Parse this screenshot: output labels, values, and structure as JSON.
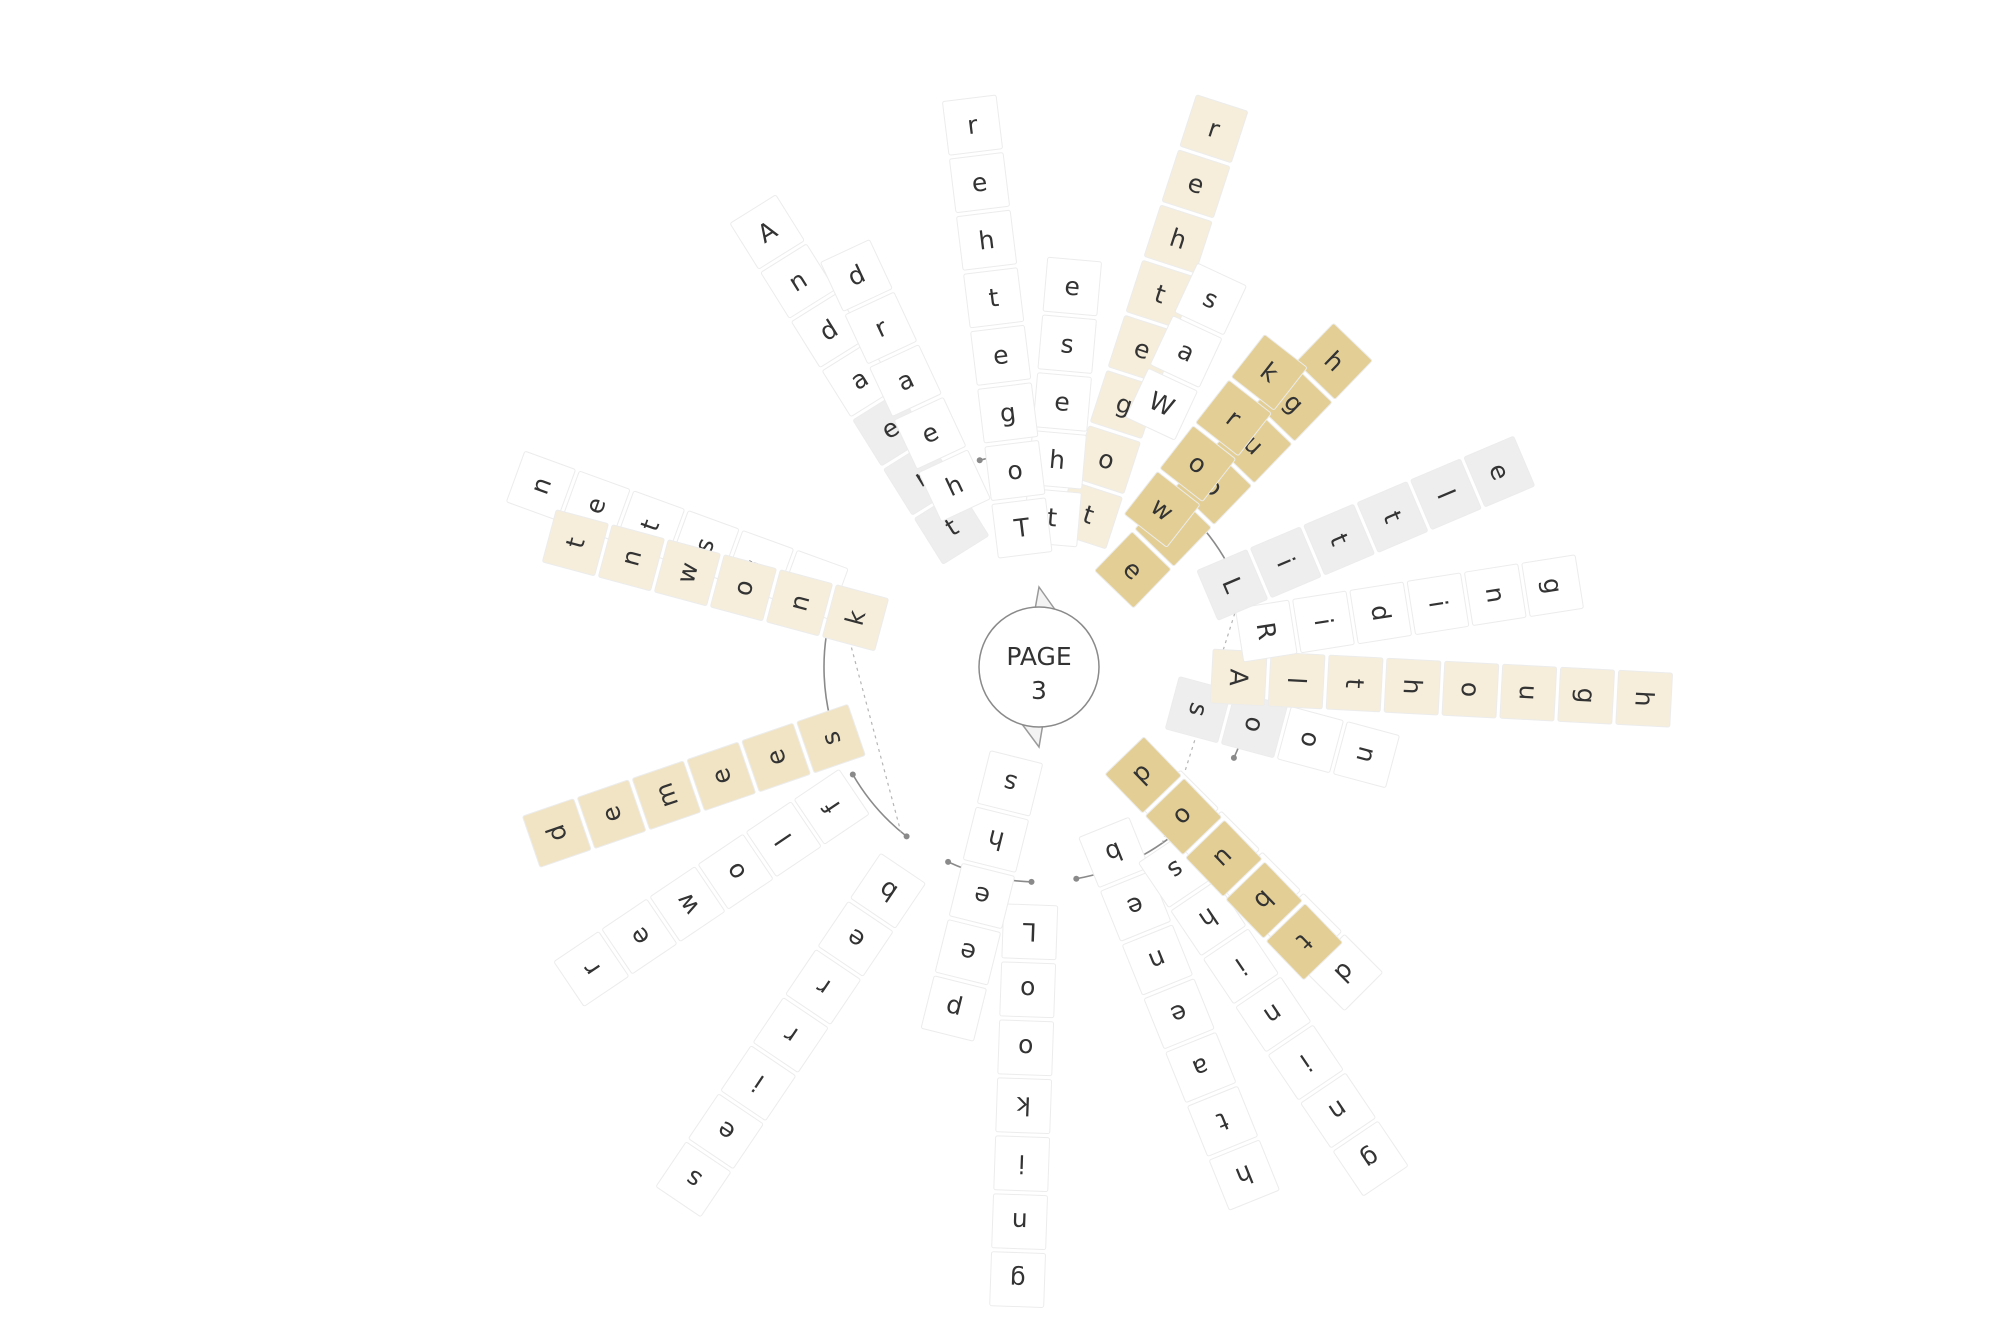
{
  "title": "",
  "hub": {
    "line1": "PAGE",
    "line2": "3"
  },
  "colors": {
    "background": "#ffffff",
    "tile_plain": "#ffffff",
    "tile_border": "#ececec",
    "tile_gray": "#eeeeee",
    "tile_light_gold": "#f6eedb",
    "tile_mid_gold": "#f1e4c4",
    "tile_dark_gold": "#e3cf95",
    "text": "#333333",
    "arc": "#8a8a8a"
  },
  "words": [
    {
      "text": "treadnA",
      "shade": "gray-head-3"
    },
    {
      "text": "listen",
      "shade": "plain"
    },
    {
      "text": "heard",
      "shade": "plain"
    },
    {
      "text": "knownt",
      "shade": "light"
    },
    {
      "text": "seemed",
      "shade": "mid"
    },
    {
      "text": "flower",
      "shade": "plain"
    },
    {
      "text": "berries",
      "shade": "plain"
    },
    {
      "text": "Looking",
      "shade": "plain"
    },
    {
      "text": "sheep",
      "shade": "plain"
    },
    {
      "text": "beneath",
      "shade": "plain"
    },
    {
      "text": "shining",
      "shade": "plain"
    },
    {
      "text": "would",
      "shade": "plain"
    },
    {
      "text": "doubt",
      "shade": "dark"
    },
    {
      "text": "soon",
      "shade": "gray-head-2"
    },
    {
      "text": "Although",
      "shade": "light"
    },
    {
      "text": "Riding",
      "shade": "plain"
    },
    {
      "text": "Little",
      "shade": "gray"
    },
    {
      "text": "enough",
      "shade": "dark"
    },
    {
      "text": "work",
      "shade": "dark"
    },
    {
      "text": "together",
      "shade": "light"
    },
    {
      "text": "these",
      "shade": "plain"
    },
    {
      "text": "Together",
      "shade": "plain"
    },
    {
      "text": "Was",
      "shade": "plain"
    }
  ]
}
